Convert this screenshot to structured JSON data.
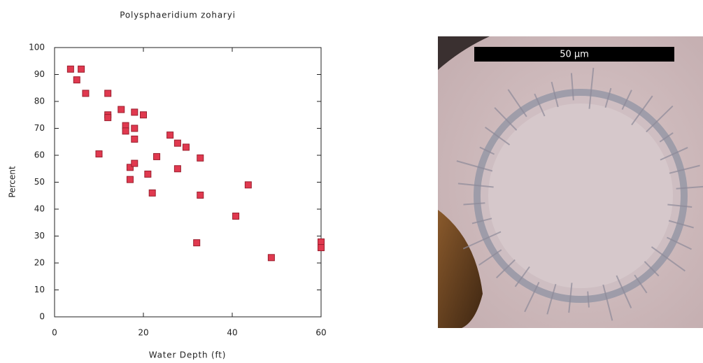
{
  "chart_data": {
    "type": "scatter",
    "title": "Polysphaeridium zoharyi",
    "x_label": "Water Depth (ft)",
    "y_label": "Percent",
    "x": [
      3.6,
      6,
      5,
      7,
      12,
      12,
      12,
      15,
      16,
      16,
      18,
      18,
      18,
      20,
      10,
      17,
      18,
      17,
      21,
      22,
      23,
      26,
      27.7,
      29.6,
      27.7,
      32.8,
      32.8,
      32,
      43.6,
      40.8,
      48.8,
      60,
      60
    ],
    "values": [
      92,
      92,
      88,
      83,
      83,
      75,
      74,
      77,
      71,
      69,
      76,
      70,
      66,
      75,
      60.5,
      55.5,
      57,
      51,
      53,
      46,
      59.5,
      67.5,
      64.5,
      63,
      55,
      59,
      45.2,
      27.5,
      49,
      37.4,
      22,
      27.8,
      25.7
    ],
    "color": "#e0394f",
    "xlim": [
      0,
      60
    ],
    "xticks": [
      0,
      20,
      40,
      60
    ],
    "ylim": [
      0,
      100
    ],
    "yticks": [
      0,
      10,
      20,
      30,
      40,
      50,
      60,
      70,
      80,
      90,
      100
    ],
    "grid": false
  },
  "micrograph": {
    "scale_bar_label": "50 µm"
  }
}
